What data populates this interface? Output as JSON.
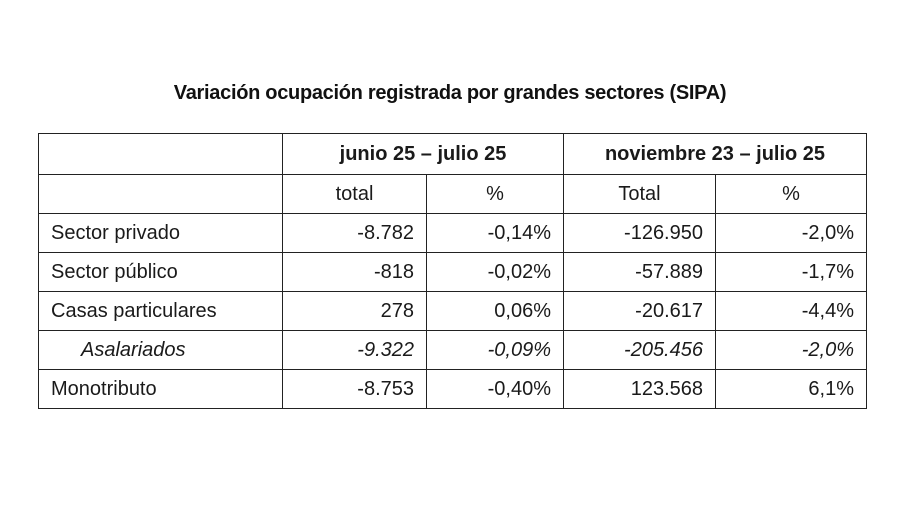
{
  "title": "Variación ocupación registrada por grandes sectores (SIPA)",
  "table": {
    "group_headers": [
      "",
      "junio 25 – julio 25",
      "noviembre 23 – julio 25"
    ],
    "sub_headers": [
      "",
      "total",
      "%",
      "Total",
      "%"
    ],
    "rows": [
      {
        "label": "Sector privado",
        "p1_total": "-8.782",
        "p1_pct": "-0,14%",
        "p2_total": "-126.950",
        "p2_pct": "-2,0%",
        "italic": false
      },
      {
        "label": "Sector público",
        "p1_total": "-818",
        "p1_pct": "-0,02%",
        "p2_total": "-57.889",
        "p2_pct": "-1,7%",
        "italic": false
      },
      {
        "label": "Casas particulares",
        "p1_total": "278",
        "p1_pct": "0,06%",
        "p2_total": "-20.617",
        "p2_pct": "-4,4%",
        "italic": false
      },
      {
        "label": "Asalariados",
        "p1_total": "-9.322",
        "p1_pct": "-0,09%",
        "p2_total": "-205.456",
        "p2_pct": "-2,0%",
        "italic": true
      },
      {
        "label": "Monotributo",
        "p1_total": "-8.753",
        "p1_pct": "-0,40%",
        "p2_total": "123.568",
        "p2_pct": "6,1%",
        "italic": false
      }
    ]
  }
}
